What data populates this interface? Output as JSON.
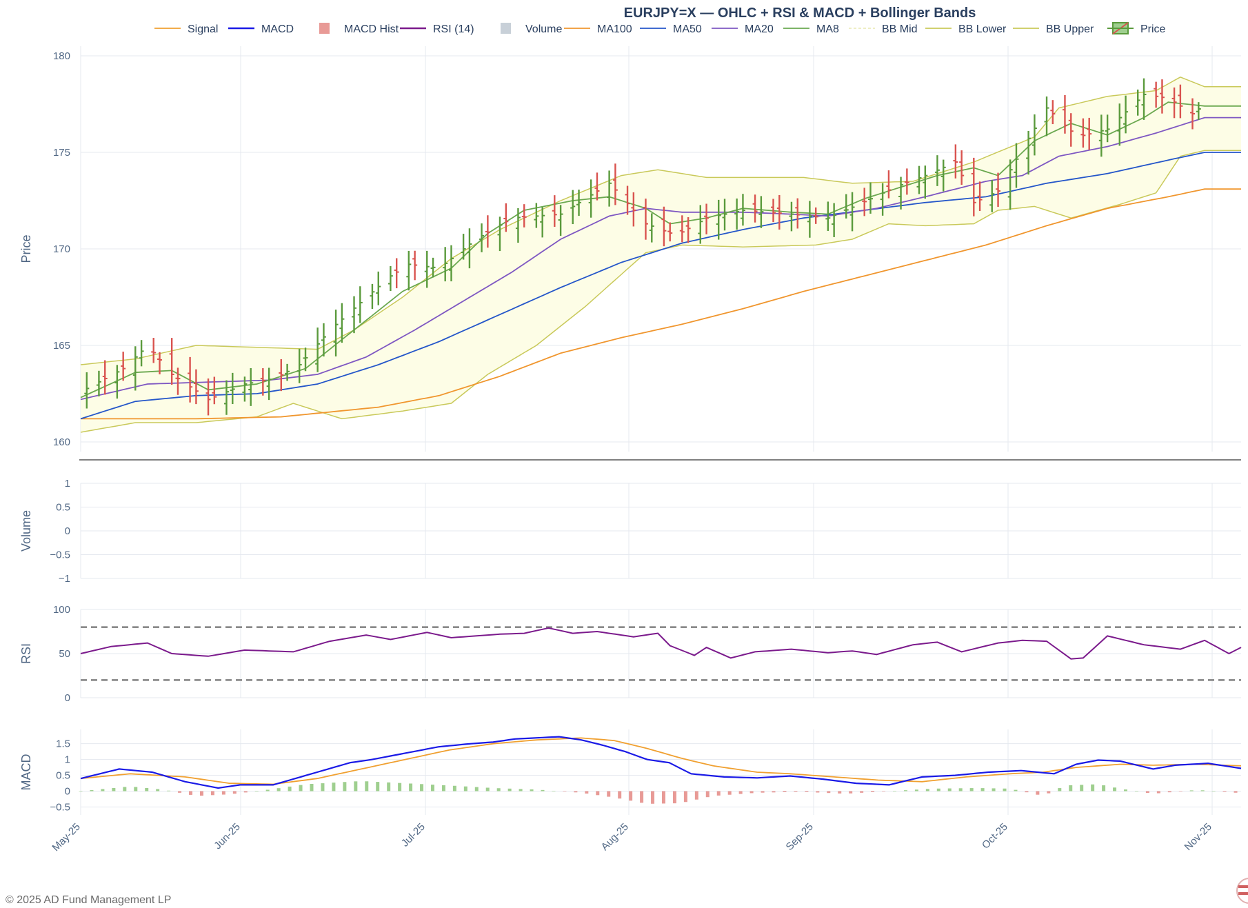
{
  "title": "EURJPY=X — OHLC + RSI & MACD + Bollinger Bands",
  "footer": "© 2025 AD Fund Management LP",
  "colors": {
    "up": "#5a9a3c",
    "down": "#d9534f",
    "ma8": "#6aa84f",
    "ma20": "#7e57c2",
    "ma50": "#2456c9",
    "ma100": "#f0962e",
    "bb": "#c9c95a",
    "bbfill": "#fdfde6",
    "rsi": "#7b1a8c",
    "macd": "#1a1ae6",
    "signal": "#f0a030",
    "hist_up": "#9fcf8f",
    "hist_down": "#e89a96",
    "grid": "#e5e8ef",
    "volume": "#c8d0d8"
  },
  "chart_data": {
    "type": "candlestick",
    "legend": [
      "Signal",
      "MACD",
      "MACD Hist",
      "RSI (14)",
      "Volume",
      "MA100",
      "MA50",
      "MA20",
      "MA8",
      "BB Mid",
      "BB Lower",
      "BB Upper",
      "Price"
    ],
    "x_ticks": [
      "May-25",
      "Jun-25",
      "Jul-25",
      "Aug-25",
      "Sep-25",
      "Oct-25",
      "Nov-25"
    ],
    "panels": {
      "price": {
        "ylabel": "Price",
        "ylim": [
          159.5,
          180.5
        ],
        "ticks": [
          "160",
          "165",
          "170",
          "175",
          "180"
        ]
      },
      "volume": {
        "ylabel": "Volume",
        "ylim": [
          -1,
          1
        ],
        "ticks": [
          "−1",
          "−0.5",
          "0",
          "0.5",
          "1"
        ]
      },
      "rsi": {
        "ylabel": "RSI",
        "ylim": [
          0,
          100
        ],
        "ticks": [
          "0",
          "50",
          "100"
        ],
        "levels": [
          20,
          80
        ]
      },
      "macd": {
        "ylabel": "MACD",
        "ylim": [
          -0.75,
          1.95
        ],
        "ticks": [
          "−0.5",
          "0",
          "0.5",
          "1",
          "1.5"
        ]
      }
    },
    "close_path": [
      [
        1,
        162.6
      ],
      [
        8,
        163.8
      ],
      [
        12,
        165.0
      ],
      [
        16,
        163.5
      ],
      [
        22,
        162.2
      ],
      [
        28,
        163.0
      ],
      [
        33,
        163.3
      ],
      [
        37,
        164.0
      ],
      [
        42,
        165.8
      ],
      [
        48,
        167.5
      ],
      [
        52,
        168.6
      ],
      [
        55,
        169.2
      ],
      [
        60,
        169.0
      ],
      [
        66,
        170.5
      ],
      [
        72,
        171.6
      ],
      [
        80,
        171.8
      ],
      [
        88,
        173.4
      ],
      [
        94,
        171.3
      ],
      [
        99,
        170.7
      ],
      [
        104,
        171.6
      ],
      [
        110,
        172.0
      ],
      [
        118,
        171.8
      ],
      [
        124,
        171.6
      ],
      [
        129,
        172.3
      ],
      [
        135,
        173.2
      ],
      [
        140,
        173.8
      ],
      [
        145,
        174.5
      ],
      [
        148,
        172.4
      ],
      [
        152,
        173.0
      ],
      [
        156,
        175.2
      ],
      [
        160,
        177.3
      ],
      [
        165,
        175.8
      ],
      [
        170,
        176.2
      ],
      [
        176,
        178.0
      ],
      [
        180,
        177.8
      ],
      [
        184,
        177.0
      ],
      [
        186,
        177.5
      ]
    ],
    "ma8_path": [
      [
        1,
        162.3
      ],
      [
        10,
        163.6
      ],
      [
        16,
        163.7
      ],
      [
        22,
        162.7
      ],
      [
        30,
        163.0
      ],
      [
        38,
        163.8
      ],
      [
        46,
        165.8
      ],
      [
        54,
        167.8
      ],
      [
        62,
        169.0
      ],
      [
        68,
        170.8
      ],
      [
        74,
        172.0
      ],
      [
        82,
        172.5
      ],
      [
        88,
        172.7
      ],
      [
        94,
        172.1
      ],
      [
        98,
        171.3
      ],
      [
        104,
        171.6
      ],
      [
        110,
        172.1
      ],
      [
        118,
        171.9
      ],
      [
        124,
        171.8
      ],
      [
        130,
        172.6
      ],
      [
        136,
        173.2
      ],
      [
        142,
        173.8
      ],
      [
        148,
        174.2
      ],
      [
        152,
        173.8
      ],
      [
        158,
        175.6
      ],
      [
        164,
        176.5
      ],
      [
        170,
        175.9
      ],
      [
        176,
        176.8
      ],
      [
        180,
        177.6
      ],
      [
        186,
        177.4
      ]
    ],
    "ma20_path": [
      [
        1,
        162.2
      ],
      [
        12,
        163.0
      ],
      [
        22,
        163.1
      ],
      [
        32,
        163.2
      ],
      [
        40,
        163.5
      ],
      [
        48,
        164.4
      ],
      [
        56,
        165.8
      ],
      [
        64,
        167.3
      ],
      [
        72,
        168.8
      ],
      [
        80,
        170.5
      ],
      [
        88,
        171.7
      ],
      [
        94,
        172.1
      ],
      [
        100,
        171.9
      ],
      [
        110,
        171.9
      ],
      [
        118,
        171.8
      ],
      [
        124,
        171.7
      ],
      [
        132,
        172.1
      ],
      [
        140,
        172.7
      ],
      [
        150,
        173.5
      ],
      [
        156,
        173.8
      ],
      [
        162,
        174.8
      ],
      [
        170,
        175.3
      ],
      [
        178,
        176.0
      ],
      [
        186,
        176.8
      ]
    ],
    "ma50_path": [
      [
        1,
        161.2
      ],
      [
        10,
        162.1
      ],
      [
        20,
        162.4
      ],
      [
        30,
        162.5
      ],
      [
        40,
        163.0
      ],
      [
        50,
        164.0
      ],
      [
        60,
        165.2
      ],
      [
        70,
        166.6
      ],
      [
        80,
        168.0
      ],
      [
        90,
        169.3
      ],
      [
        100,
        170.3
      ],
      [
        110,
        171.0
      ],
      [
        120,
        171.6
      ],
      [
        130,
        172.0
      ],
      [
        140,
        172.4
      ],
      [
        150,
        172.7
      ],
      [
        160,
        173.4
      ],
      [
        170,
        173.9
      ],
      [
        180,
        174.6
      ],
      [
        186,
        175.0
      ]
    ],
    "ma100_path": [
      [
        1,
        161.2
      ],
      [
        20,
        161.2
      ],
      [
        34,
        161.3
      ],
      [
        50,
        161.8
      ],
      [
        60,
        162.4
      ],
      [
        70,
        163.4
      ],
      [
        80,
        164.6
      ],
      [
        90,
        165.4
      ],
      [
        100,
        166.1
      ],
      [
        110,
        166.9
      ],
      [
        120,
        167.8
      ],
      [
        130,
        168.6
      ],
      [
        140,
        169.4
      ],
      [
        150,
        170.2
      ],
      [
        160,
        171.2
      ],
      [
        170,
        172.1
      ],
      [
        180,
        172.7
      ],
      [
        186,
        173.1
      ]
    ],
    "bb_upper_path": [
      [
        1,
        164.0
      ],
      [
        10,
        164.3
      ],
      [
        20,
        165.0
      ],
      [
        30,
        164.9
      ],
      [
        40,
        164.8
      ],
      [
        46,
        165.8
      ],
      [
        54,
        167.5
      ],
      [
        62,
        169.5
      ],
      [
        70,
        171.0
      ],
      [
        80,
        172.5
      ],
      [
        90,
        173.8
      ],
      [
        96,
        174.1
      ],
      [
        104,
        173.7
      ],
      [
        120,
        173.7
      ],
      [
        128,
        173.4
      ],
      [
        138,
        173.5
      ],
      [
        148,
        174.5
      ],
      [
        158,
        175.8
      ],
      [
        162,
        177.3
      ],
      [
        170,
        177.9
      ],
      [
        178,
        178.2
      ],
      [
        182,
        178.9
      ],
      [
        186,
        178.4
      ]
    ],
    "bb_lower_path": [
      [
        1,
        160.5
      ],
      [
        10,
        161.0
      ],
      [
        20,
        161.0
      ],
      [
        30,
        161.3
      ],
      [
        36,
        162.0
      ],
      [
        44,
        161.2
      ],
      [
        54,
        161.6
      ],
      [
        62,
        162.0
      ],
      [
        68,
        163.5
      ],
      [
        76,
        165.0
      ],
      [
        84,
        167.0
      ],
      [
        94,
        169.8
      ],
      [
        100,
        170.2
      ],
      [
        110,
        170.1
      ],
      [
        122,
        170.2
      ],
      [
        128,
        170.5
      ],
      [
        134,
        171.3
      ],
      [
        140,
        171.2
      ],
      [
        148,
        171.3
      ],
      [
        152,
        172.0
      ],
      [
        158,
        172.2
      ],
      [
        164,
        171.6
      ],
      [
        172,
        172.3
      ],
      [
        178,
        172.9
      ],
      [
        182,
        174.8
      ],
      [
        186,
        175.1
      ]
    ],
    "rsi_path": [
      [
        1,
        50
      ],
      [
        6,
        58
      ],
      [
        12,
        62
      ],
      [
        16,
        50
      ],
      [
        22,
        47
      ],
      [
        28,
        54
      ],
      [
        32,
        53
      ],
      [
        36,
        52
      ],
      [
        42,
        64
      ],
      [
        48,
        71
      ],
      [
        52,
        66
      ],
      [
        58,
        74
      ],
      [
        62,
        68
      ],
      [
        66,
        70
      ],
      [
        70,
        72
      ],
      [
        74,
        73
      ],
      [
        78,
        79
      ],
      [
        82,
        73
      ],
      [
        86,
        75
      ],
      [
        92,
        69
      ],
      [
        96,
        73
      ],
      [
        98,
        59
      ],
      [
        102,
        48
      ],
      [
        104,
        57
      ],
      [
        108,
        45
      ],
      [
        112,
        52
      ],
      [
        118,
        55
      ],
      [
        124,
        51
      ],
      [
        128,
        53
      ],
      [
        132,
        49
      ],
      [
        138,
        60
      ],
      [
        142,
        63
      ],
      [
        146,
        52
      ],
      [
        152,
        62
      ],
      [
        156,
        65
      ],
      [
        160,
        64
      ],
      [
        164,
        44
      ],
      [
        166,
        45
      ],
      [
        170,
        70
      ],
      [
        176,
        60
      ],
      [
        182,
        55
      ],
      [
        186,
        65
      ],
      [
        190,
        50
      ],
      [
        192,
        57
      ]
    ],
    "macd_path": [
      [
        1,
        0.4
      ],
      [
        8,
        0.7
      ],
      [
        14,
        0.6
      ],
      [
        20,
        0.3
      ],
      [
        26,
        0.1
      ],
      [
        30,
        0.2
      ],
      [
        36,
        0.2
      ],
      [
        42,
        0.5
      ],
      [
        50,
        0.9
      ],
      [
        54,
        1.0
      ],
      [
        60,
        1.2
      ],
      [
        66,
        1.4
      ],
      [
        72,
        1.5
      ],
      [
        76,
        1.55
      ],
      [
        80,
        1.65
      ],
      [
        88,
        1.72
      ],
      [
        92,
        1.62
      ],
      [
        96,
        1.45
      ],
      [
        100,
        1.25
      ],
      [
        104,
        1.0
      ],
      [
        108,
        0.9
      ],
      [
        112,
        0.55
      ],
      [
        118,
        0.45
      ],
      [
        124,
        0.42
      ],
      [
        130,
        0.48
      ],
      [
        136,
        0.38
      ],
      [
        142,
        0.25
      ],
      [
        148,
        0.2
      ],
      [
        154,
        0.45
      ],
      [
        160,
        0.5
      ],
      [
        166,
        0.6
      ],
      [
        172,
        0.65
      ],
      [
        178,
        0.55
      ],
      [
        182,
        0.85
      ],
      [
        186,
        0.98
      ],
      [
        190,
        0.95
      ],
      [
        196,
        0.7
      ],
      [
        200,
        0.82
      ],
      [
        206,
        0.88
      ],
      [
        212,
        0.72
      ]
    ],
    "signal_path": [
      [
        1,
        0.4
      ],
      [
        10,
        0.55
      ],
      [
        20,
        0.45
      ],
      [
        28,
        0.25
      ],
      [
        36,
        0.22
      ],
      [
        44,
        0.4
      ],
      [
        52,
        0.7
      ],
      [
        60,
        1.0
      ],
      [
        68,
        1.3
      ],
      [
        76,
        1.5
      ],
      [
        84,
        1.62
      ],
      [
        92,
        1.68
      ],
      [
        98,
        1.6
      ],
      [
        104,
        1.35
      ],
      [
        110,
        1.05
      ],
      [
        116,
        0.8
      ],
      [
        124,
        0.6
      ],
      [
        130,
        0.55
      ],
      [
        138,
        0.45
      ],
      [
        146,
        0.35
      ],
      [
        154,
        0.3
      ],
      [
        162,
        0.45
      ],
      [
        170,
        0.55
      ],
      [
        176,
        0.6
      ],
      [
        182,
        0.75
      ],
      [
        190,
        0.85
      ],
      [
        196,
        0.82
      ],
      [
        204,
        0.85
      ],
      [
        212,
        0.8
      ]
    ],
    "hist_path": [
      [
        1,
        0.0
      ],
      [
        10,
        0.15
      ],
      [
        16,
        0.05
      ],
      [
        22,
        -0.15
      ],
      [
        28,
        -0.1
      ],
      [
        34,
        0.02
      ],
      [
        42,
        0.22
      ],
      [
        52,
        0.32
      ],
      [
        60,
        0.25
      ],
      [
        68,
        0.18
      ],
      [
        76,
        0.1
      ],
      [
        84,
        0.05
      ],
      [
        92,
        -0.05
      ],
      [
        98,
        -0.2
      ],
      [
        104,
        -0.4
      ],
      [
        110,
        -0.38
      ],
      [
        116,
        -0.15
      ],
      [
        124,
        -0.05
      ],
      [
        132,
        -0.02
      ],
      [
        140,
        -0.08
      ],
      [
        148,
        0.0
      ],
      [
        156,
        0.08
      ],
      [
        164,
        0.1
      ],
      [
        170,
        0.08
      ],
      [
        176,
        -0.15
      ],
      [
        180,
        0.18
      ],
      [
        186,
        0.22
      ],
      [
        190,
        0.08
      ],
      [
        196,
        -0.08
      ],
      [
        204,
        0.04
      ],
      [
        212,
        -0.06
      ]
    ]
  }
}
